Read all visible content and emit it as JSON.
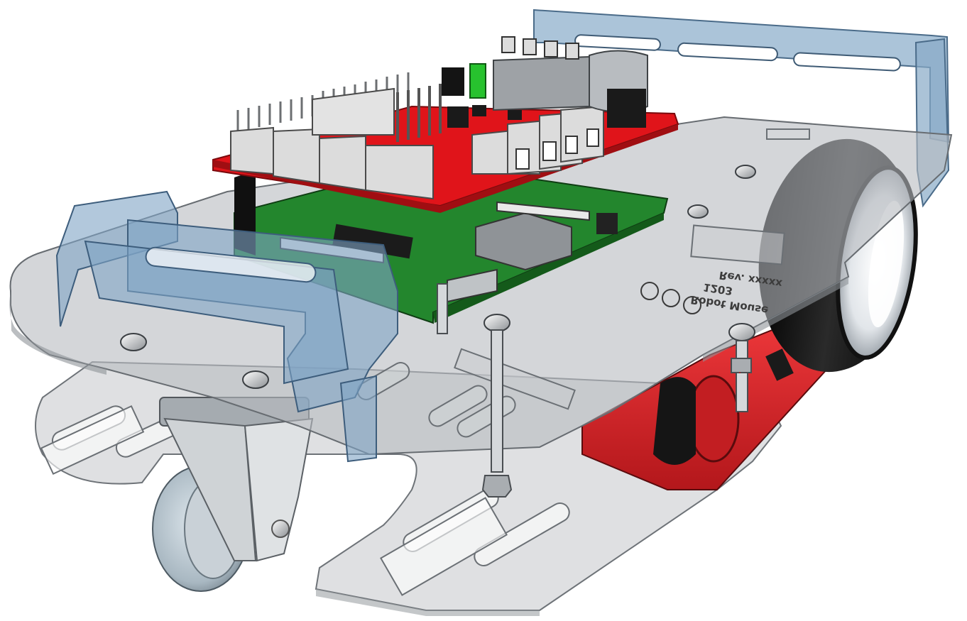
{
  "scene": {
    "subject": "Robot Mouse chassis 3D render",
    "engraving": {
      "line1": "Robot Mouse",
      "line2": "1203",
      "line3": "Rev. xxxxx"
    }
  },
  "colors": {
    "background": "#ffffff",
    "acrylic_clear": "#b9bcc0",
    "acrylic_blue": "#7fa3c4",
    "pcb_red": "#e0141a",
    "pcb_green": "#1f7a28",
    "battery_red": "#d8262a",
    "tire_black": "#111111",
    "hub_white": "#e9ecef",
    "caster_wheel": "#b3c2cc",
    "connector_grey": "#d7d7d7"
  }
}
